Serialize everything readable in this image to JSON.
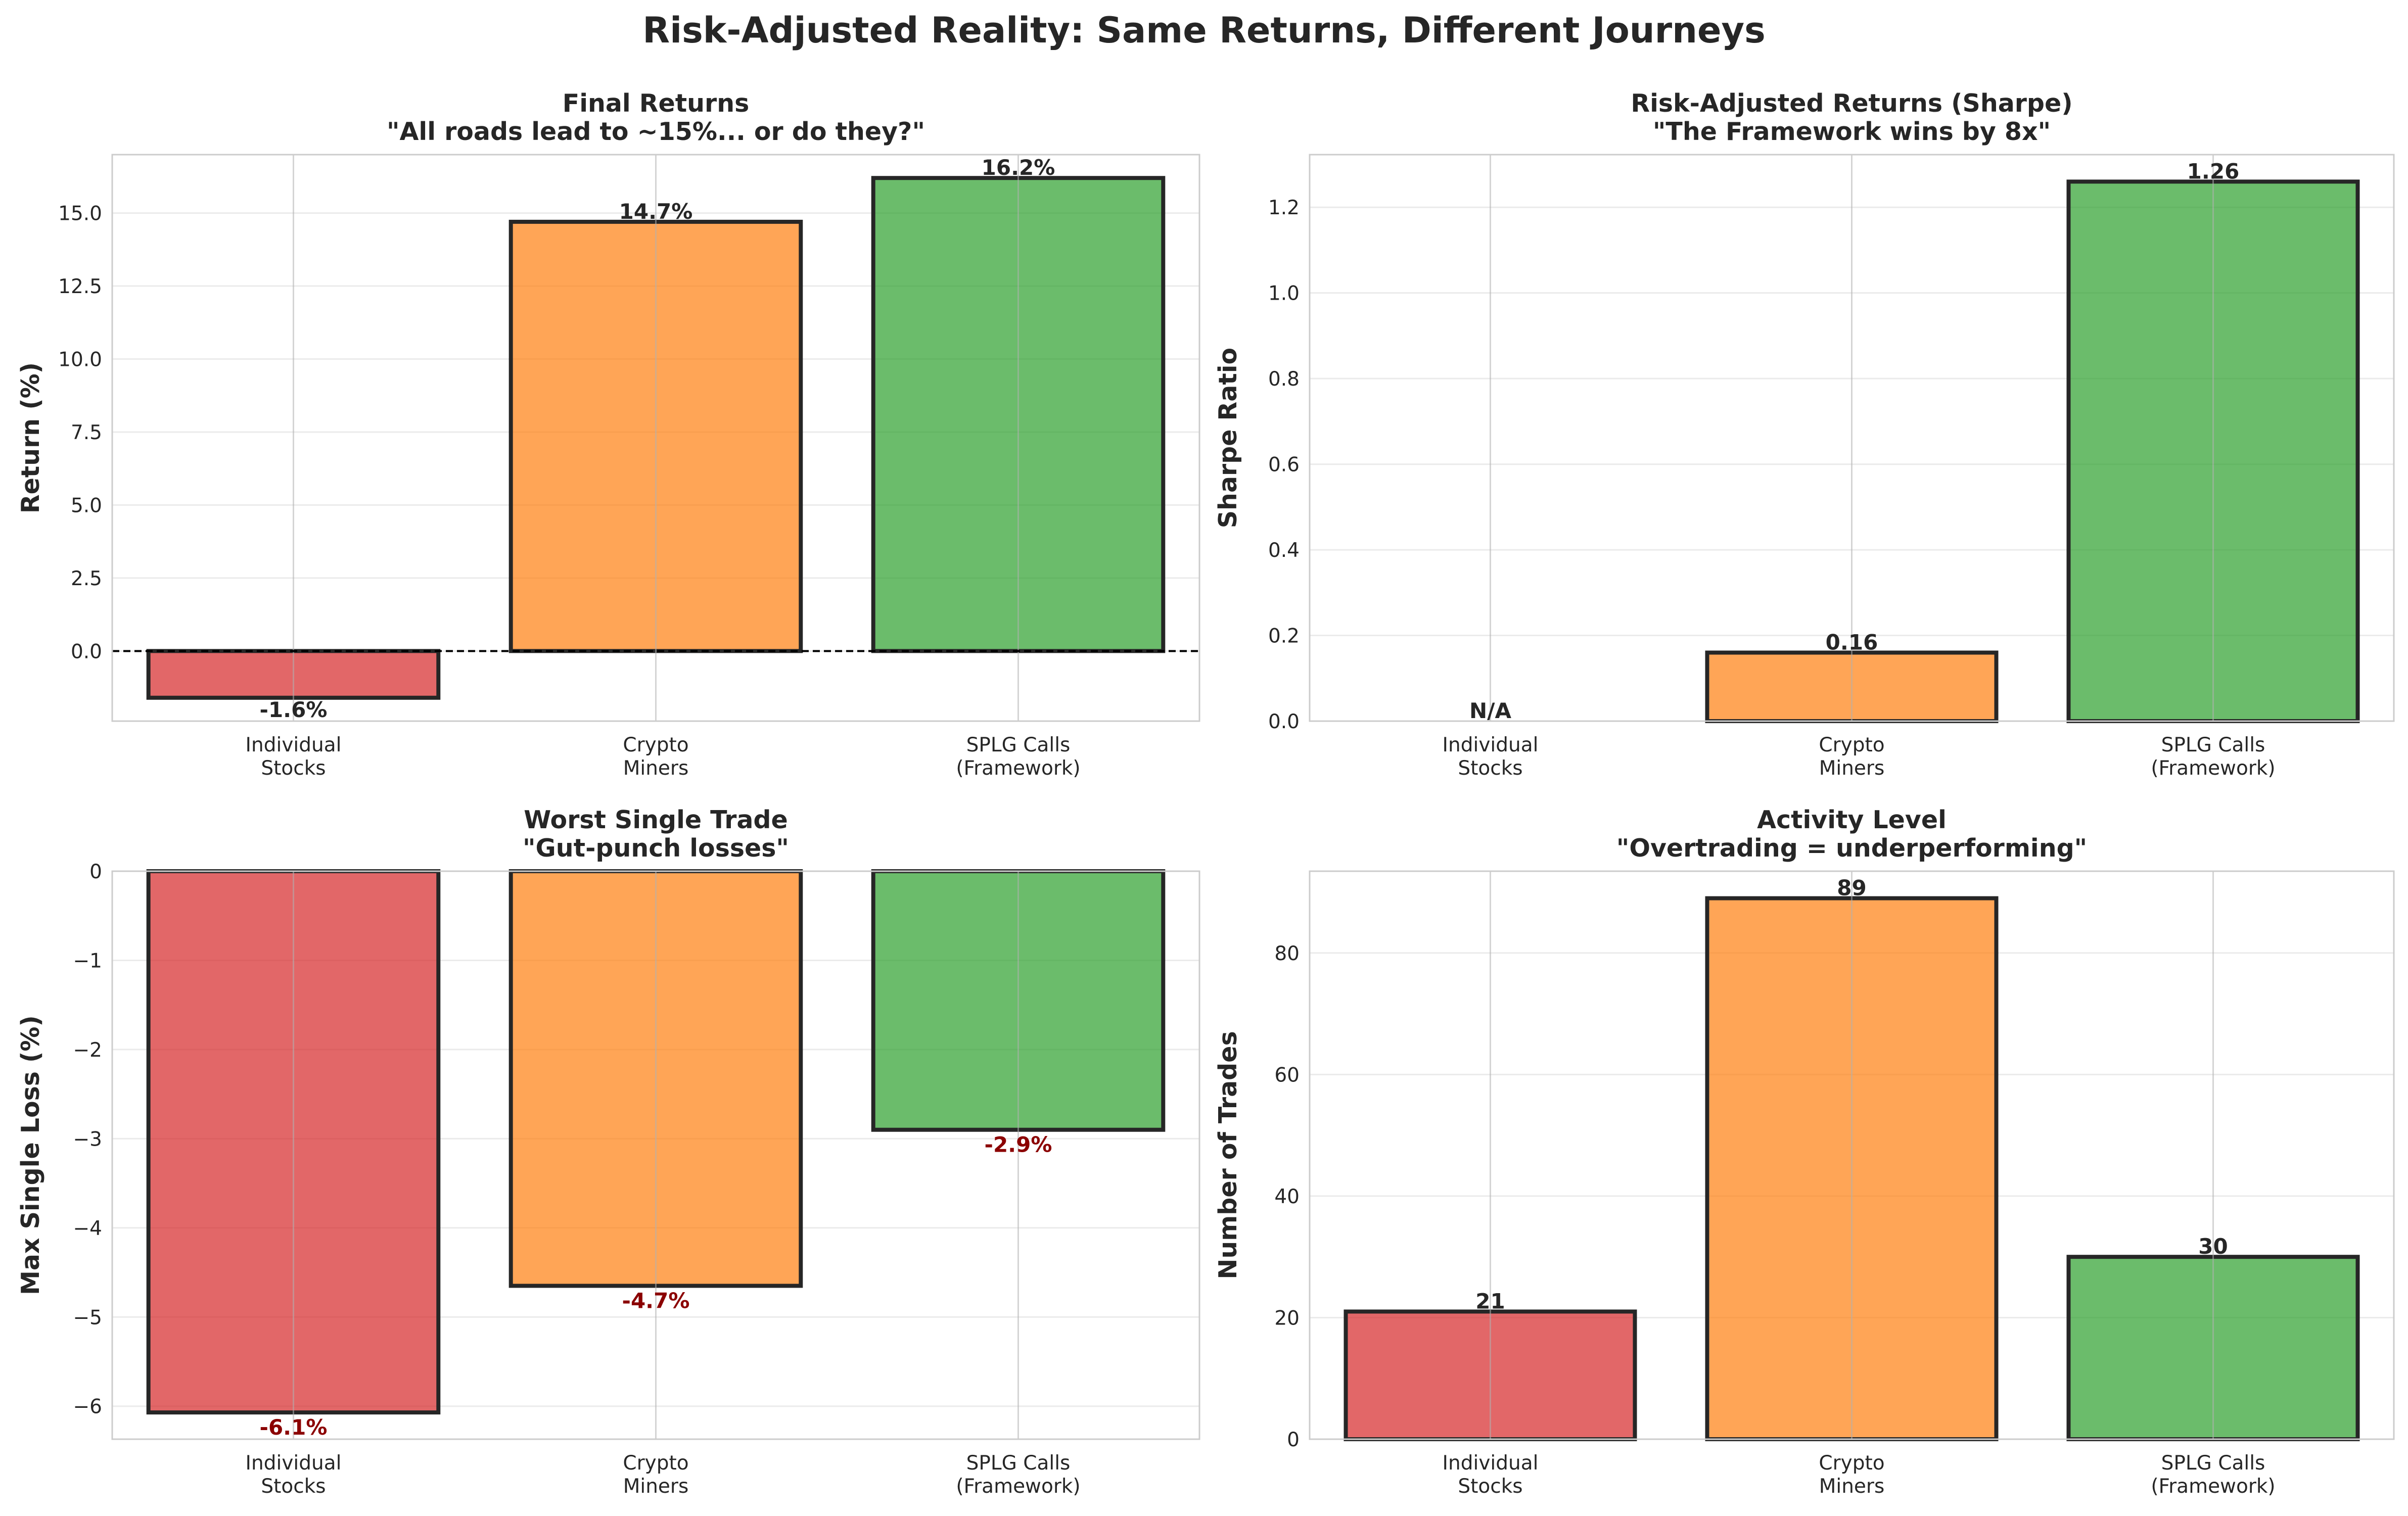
{
  "figure": {
    "suptitle": "Risk-Adjusted Reality: Same Returns, Different Journeys"
  },
  "colors": {
    "red": "#d62728",
    "orange": "#ff7f0e",
    "green": "#2ca02c",
    "edge": "#262626",
    "loss_label": "#8b0000"
  },
  "chart_data": [
    {
      "type": "bar",
      "title": "Final Returns\n\"All roads lead to ~15%... or do they?\"",
      "xlabel": "",
      "ylabel": "Return (%)",
      "categories": [
        "Individual\nStocks",
        "Crypto\nMiners",
        "SPLG Calls\n(Framework)"
      ],
      "values": [
        -1.6,
        14.7,
        16.2
      ],
      "value_labels": [
        "-1.6%",
        "14.7%",
        "16.2%"
      ],
      "ylim": [
        -2.4,
        17.0
      ],
      "yticks": [
        0.0,
        2.5,
        5.0,
        7.5,
        10.0,
        12.5,
        15.0
      ],
      "ytick_labels": [
        "0.0",
        "2.5",
        "5.0",
        "7.5",
        "10.0",
        "12.5",
        "15.0"
      ],
      "zero_line": "dashed",
      "grid": true
    },
    {
      "type": "bar",
      "title": "Risk-Adjusted Returns (Sharpe)\n\"The Framework wins by 8x\"",
      "xlabel": "",
      "ylabel": "Sharpe Ratio",
      "categories": [
        "Individual\nStocks",
        "Crypto\nMiners",
        "SPLG Calls\n(Framework)"
      ],
      "values": [
        0,
        0.16,
        1.26
      ],
      "value_labels": [
        "N/A",
        "0.16",
        "1.26"
      ],
      "ylim": [
        0,
        1.323
      ],
      "yticks": [
        0.0,
        0.2,
        0.4,
        0.6,
        0.8,
        1.0,
        1.2
      ],
      "ytick_labels": [
        "0.0",
        "0.2",
        "0.4",
        "0.6",
        "0.8",
        "1.0",
        "1.2"
      ],
      "grid": true
    },
    {
      "type": "bar",
      "title": "Worst Single Trade\n\"Gut-punch losses\"",
      "xlabel": "",
      "ylabel": "Max Single Loss (%)",
      "categories": [
        "Individual\nStocks",
        "Crypto\nMiners",
        "SPLG Calls\n(Framework)"
      ],
      "values": [
        -6.07,
        -4.65,
        -2.9
      ],
      "value_labels": [
        "-6.1%",
        "-4.7%",
        "-2.9%"
      ],
      "ylim": [
        -6.37,
        0
      ],
      "yticks": [
        0,
        -1,
        -2,
        -3,
        -4,
        -5,
        -6
      ],
      "ytick_labels": [
        "0",
        "−1",
        "−2",
        "−3",
        "−4",
        "−5",
        "−6"
      ],
      "grid": true
    },
    {
      "type": "bar",
      "title": "Activity Level\n\"Overtrading = underperforming\"",
      "xlabel": "",
      "ylabel": "Number of Trades",
      "categories": [
        "Individual\nStocks",
        "Crypto\nMiners",
        "SPLG Calls\n(Framework)"
      ],
      "values": [
        21,
        89,
        30
      ],
      "value_labels": [
        "21",
        "89",
        "30"
      ],
      "ylim": [
        0,
        93.45
      ],
      "yticks": [
        0,
        20,
        40,
        60,
        80
      ],
      "ytick_labels": [
        "0",
        "20",
        "40",
        "60",
        "80"
      ],
      "grid": true
    }
  ]
}
